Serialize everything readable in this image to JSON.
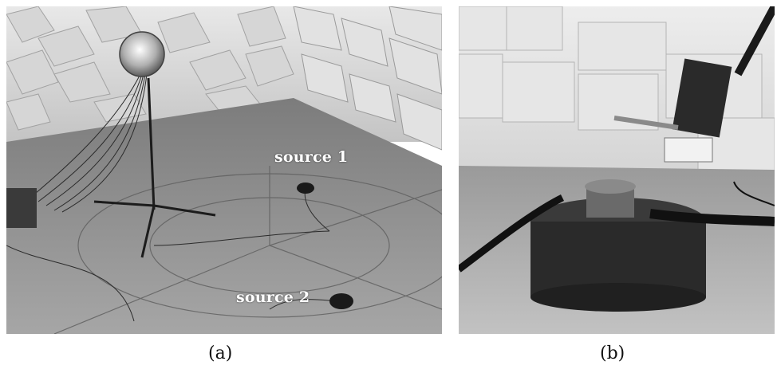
{
  "figure": {
    "panels": [
      {
        "id": "a",
        "caption": "(a)",
        "labels": {
          "source_1": "source 1",
          "source_2": "source 2"
        }
      },
      {
        "id": "b",
        "caption": "(b)"
      }
    ]
  },
  "colors": {
    "foam_light": "#e4e4e4",
    "foam_shadow": "#a8a8a8",
    "floor": "#8d8d8d",
    "equipment": "#2a2a2a",
    "label_text": "#ffffff"
  }
}
